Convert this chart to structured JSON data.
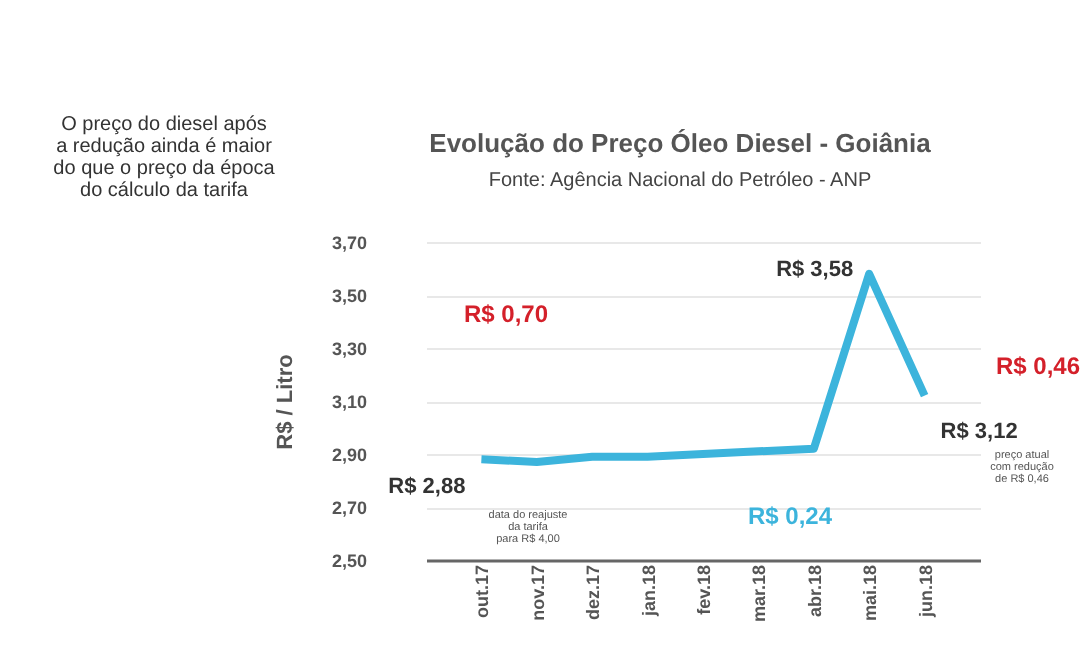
{
  "chart_data": {
    "type": "line",
    "title": "Evolução do Preço Óleo Diesel - Goiânia",
    "subtitle": "Fonte: Agência Nacional do Petróleo - ANP",
    "ylabel": "R$ / Litro",
    "categories": [
      "out.17",
      "nov.17",
      "dez.17",
      "jan.18",
      "fev.18",
      "mar.18",
      "abr.18",
      "mai.18",
      "jun.18"
    ],
    "series": [
      {
        "color": "#3cb4dc",
        "values": [
          2.88,
          2.87,
          2.89,
          2.89,
          2.9,
          2.91,
          2.92,
          3.58,
          3.12
        ],
        "value_labels": [
          "R$ 2,88",
          null,
          null,
          null,
          null,
          null,
          null,
          "R$ 3,58",
          "R$ 3,12"
        ]
      }
    ],
    "ylim": [
      2.5,
      3.7
    ],
    "yticks": [
      {
        "value": 2.5,
        "label": "2,50"
      },
      {
        "value": 2.7,
        "label": "2,70"
      },
      {
        "value": 2.9,
        "label": "2,90"
      },
      {
        "value": 3.1,
        "label": "3,10"
      },
      {
        "value": 3.3,
        "label": "3,30"
      },
      {
        "value": 3.5,
        "label": "3,50"
      },
      {
        "value": 3.7,
        "label": "3,70"
      }
    ],
    "grid": "y",
    "marker": "none",
    "line_style": "solid",
    "annotations": [
      "O preço do diesel após\na redução ainda é maior\ndo que o preço da época\ndo cálculo da tarifa",
      "R$ 0,70",
      "R$ 0,46",
      "R$ 0,24",
      "data do reajuste\nda tarifa\npara R$ 4,00",
      "preço atual\ncom redução\nde R$ 0,46"
    ]
  }
}
